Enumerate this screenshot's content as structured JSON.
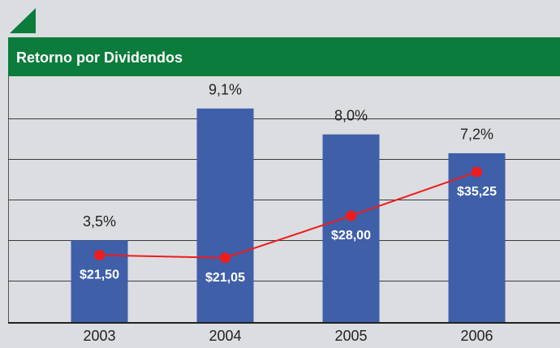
{
  "chart_data": {
    "type": "bar",
    "title": "Retorno por Dividendos",
    "categories": [
      "2003",
      "2004",
      "2005",
      "2006"
    ],
    "series": [
      {
        "type": "bar",
        "color": "#3f5fa9",
        "values": [
          3.5,
          9.1,
          8.0,
          7.2
        ],
        "value_labels": [
          "3,5%",
          "9,1%",
          "8,0%",
          "7,2%"
        ]
      },
      {
        "type": "line",
        "axis": "y2",
        "color": "#ee1c1c",
        "values": [
          21.5,
          21.05,
          28.0,
          35.25
        ],
        "value_labels": [
          "$21,50",
          "$21,05",
          "$28,00",
          "$35,25"
        ]
      }
    ],
    "ylim": [
      0,
      10.4
    ],
    "y2lim": [
      10.3,
      50.8
    ],
    "grid": true
  }
}
